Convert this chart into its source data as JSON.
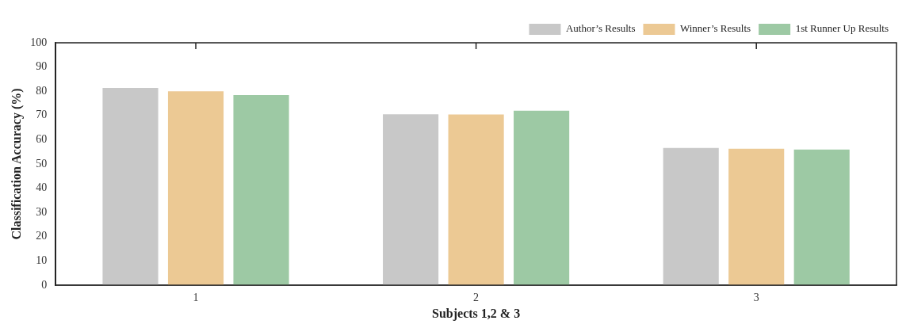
{
  "chart_data": {
    "type": "bar",
    "xlabel": "Subjects 1,2 & 3",
    "ylabel": "Classification Accuracy (%)",
    "categories": [
      "1",
      "2",
      "3"
    ],
    "series": [
      {
        "name": "Author’s Results",
        "color": "#c8c8c8",
        "values": [
          81.4,
          70.5,
          56.6
        ]
      },
      {
        "name": "Winner’s Results",
        "color": "#ecc994",
        "values": [
          80.0,
          70.4,
          56.3
        ]
      },
      {
        "name": "1st Runner Up Results",
        "color": "#9dc9a4",
        "values": [
          78.4,
          72.0,
          56.0
        ]
      }
    ],
    "ylim": [
      0,
      100
    ],
    "yticks": [
      0,
      10,
      20,
      30,
      40,
      50,
      60,
      70,
      80,
      90,
      100
    ],
    "grid": false,
    "legend": "top right"
  }
}
